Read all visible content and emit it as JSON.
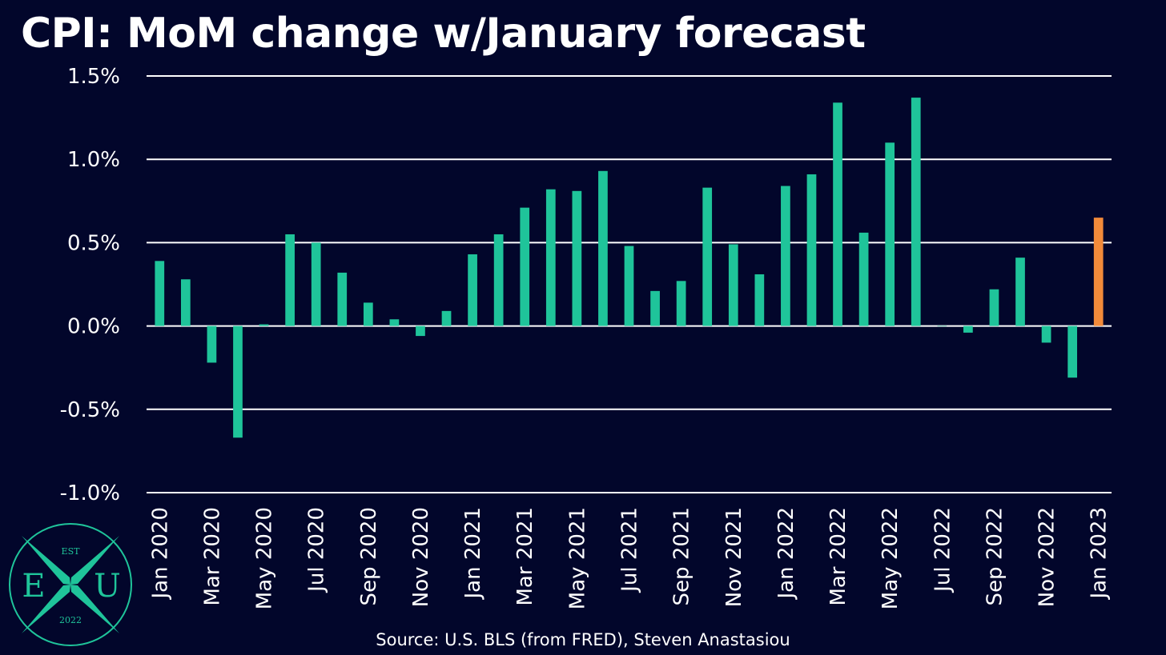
{
  "chart_data": {
    "type": "bar",
    "title": "CPI: MoM change w/January forecast",
    "source": "Source: U.S. BLS (from FRED), Steven Anastasiou",
    "xlabel": "",
    "ylabel": "",
    "ylim": [
      -1.0,
      1.5
    ],
    "y_ticks": [
      "1.5%",
      "1.0%",
      "0.5%",
      "0.0%",
      "-0.5%",
      "-1.0%"
    ],
    "y_tick_values": [
      1.5,
      1.0,
      0.5,
      0.0,
      -0.5,
      -1.0
    ],
    "grid": true,
    "legend": "none",
    "categories": [
      "Jan 2020",
      "Feb 2020",
      "Mar 2020",
      "Apr 2020",
      "May 2020",
      "Jun 2020",
      "Jul 2020",
      "Aug 2020",
      "Sep 2020",
      "Oct 2020",
      "Nov 2020",
      "Dec 2020",
      "Jan 2021",
      "Feb 2021",
      "Mar 2021",
      "Apr 2021",
      "May 2021",
      "Jun 2021",
      "Jul 2021",
      "Aug 2021",
      "Sep 2021",
      "Oct 2021",
      "Nov 2021",
      "Dec 2021",
      "Jan 2022",
      "Feb 2022",
      "Mar 2022",
      "Apr 2022",
      "May 2022",
      "Jun 2022",
      "Jul 2022",
      "Aug 2022",
      "Sep 2022",
      "Oct 2022",
      "Nov 2022",
      "Dec 2022",
      "Jan 2023"
    ],
    "x_tick_labels": [
      "Jan 2020",
      "Mar 2020",
      "May 2020",
      "Jul 2020",
      "Sep 2020",
      "Nov 2020",
      "Jan 2021",
      "Mar 2021",
      "May 2021",
      "Jul 2021",
      "Sep 2021",
      "Nov 2021",
      "Jan 2022",
      "Mar 2022",
      "May 2022",
      "Jul 2022",
      "Sep 2022",
      "Nov 2022",
      "Jan 2023"
    ],
    "values": [
      0.39,
      0.28,
      -0.22,
      -0.67,
      0.01,
      0.55,
      0.5,
      0.32,
      0.14,
      0.04,
      -0.06,
      0.09,
      0.43,
      0.55,
      0.71,
      0.82,
      0.81,
      0.93,
      0.48,
      0.21,
      0.27,
      0.83,
      0.49,
      0.31,
      0.84,
      0.91,
      1.34,
      0.56,
      1.1,
      1.37,
      0.0,
      -0.04,
      0.22,
      0.41,
      -0.1,
      -0.31,
      0.65
    ],
    "forecast_index": 36,
    "colors": {
      "actual": "#1fc49a",
      "forecast": "#f28a3a",
      "grid": "#ffffff",
      "background": "#02062b"
    }
  },
  "logo": {
    "top": "EST",
    "left_letter": "E",
    "center_letter": "X",
    "right_letter": "U",
    "bottom": "2022",
    "color": "#1fc49a"
  }
}
